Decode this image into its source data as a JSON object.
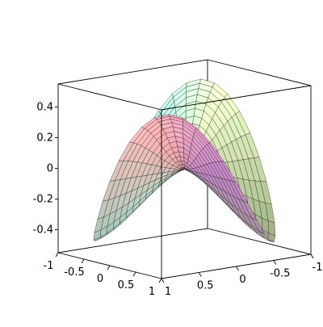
{
  "chart_data": {
    "type": "surface3d",
    "title": "",
    "xlabel": "",
    "ylabel": "",
    "zlabel": "",
    "x_range": [
      -1,
      1
    ],
    "y_range": [
      -1,
      1
    ],
    "z_range": [
      -0.55,
      0.55
    ],
    "x_ticks": [
      "-1",
      "-0.5",
      "0",
      "0.5",
      "1"
    ],
    "y_ticks": [
      "1",
      "0.5",
      "0",
      "-0.5",
      "-1"
    ],
    "z_ticks": [
      "0.4",
      "0.2",
      "0",
      "-0.2",
      "-0.4"
    ],
    "surface": "z = x*y*cos(3*sqrt(x^2+y^2))-like saddle over the unit disk: two peaks rising to about 0.55 and two troughs dipping to about -0.55 at the rim",
    "samples_polar": [
      {
        "r": 0.0,
        "theta_deg": 0,
        "z": 0.0
      },
      {
        "r": 0.5,
        "theta_deg": 45,
        "z": 0.45
      },
      {
        "r": 1.0,
        "theta_deg": 45,
        "z": 0.2
      },
      {
        "r": 0.5,
        "theta_deg": 135,
        "z": -0.45
      },
      {
        "r": 1.0,
        "theta_deg": 135,
        "z": -0.2
      },
      {
        "r": 0.5,
        "theta_deg": 225,
        "z": 0.45
      },
      {
        "r": 0.5,
        "theta_deg": 315,
        "z": -0.45
      }
    ],
    "grid": false,
    "legend": "none",
    "box": true,
    "colors": {
      "mesh": "#1a1a1a",
      "box": "#000000",
      "palette": [
        "#c98ad0",
        "#f0a8a8",
        "#c8ecd8",
        "#9fe8f0",
        "#e4f0c0",
        "#c0d8a0"
      ]
    }
  }
}
